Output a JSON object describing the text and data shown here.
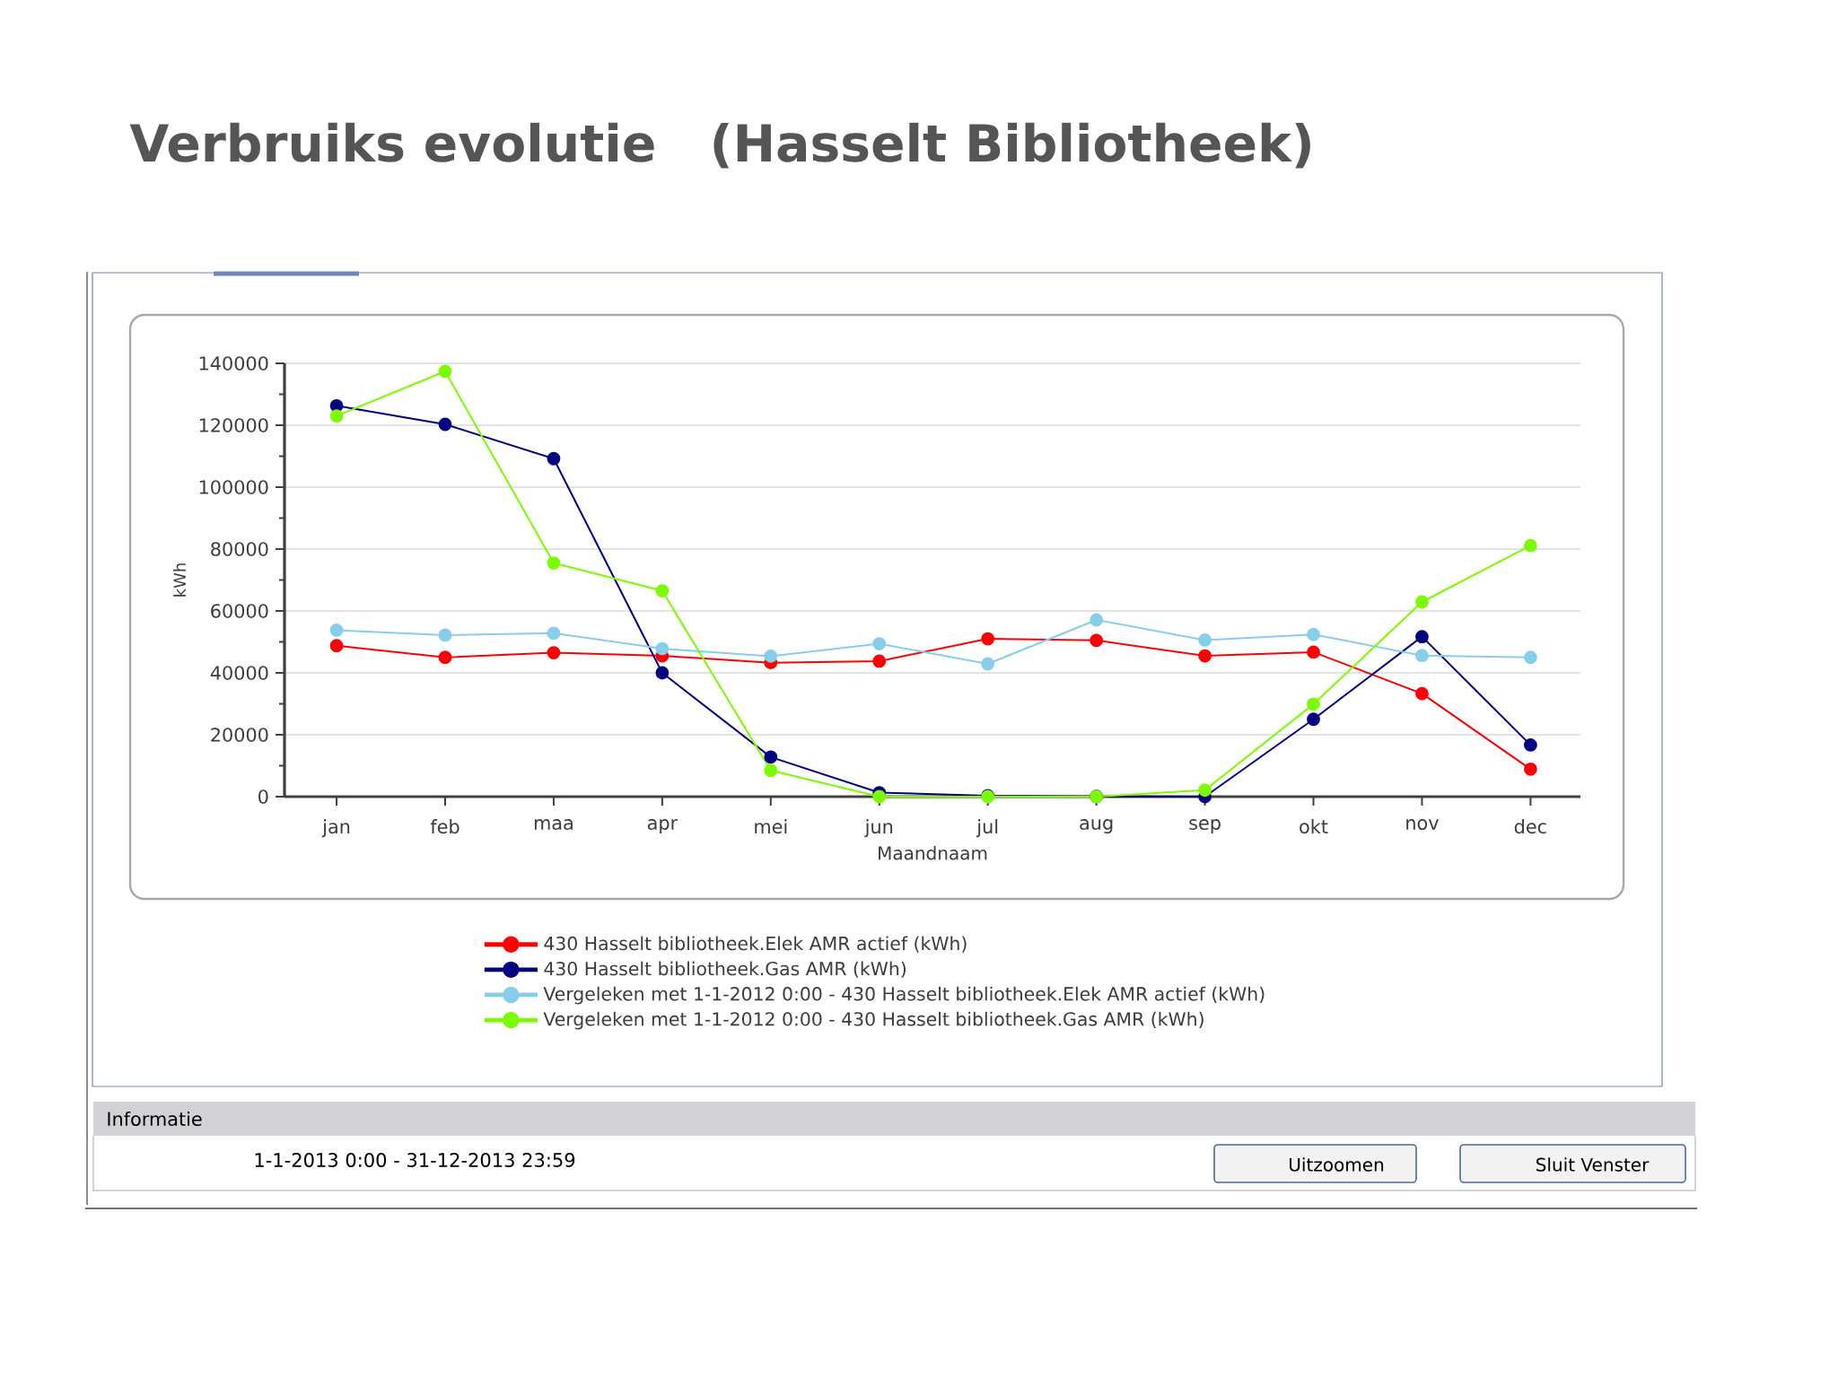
{
  "chart_data": {
    "type": "line",
    "title": "Verbruiks evolutie   (Hasselt Bibliotheek)",
    "xlabel": "Maandnaam",
    "ylabel": "kWh",
    "categories": [
      "jan",
      "feb",
      "maa",
      "apr",
      "mei",
      "jun",
      "jul",
      "aug",
      "sep",
      "okt",
      "nov",
      "dec"
    ],
    "series": [
      {
        "name": "430 Hasselt bibliotheek.Elek AMR actief (kWh)",
        "color": "#ff0000",
        "values": [
          48800,
          45000,
          46500,
          45500,
          43300,
          43800,
          51000,
          50500,
          45500,
          46700,
          33300,
          8900
        ]
      },
      {
        "name": "430 Hasselt bibliotheek.Gas AMR (kWh)",
        "color": "#000080",
        "values": [
          126300,
          120300,
          109200,
          40000,
          12800,
          1300,
          300,
          100,
          0,
          25000,
          51700,
          16700
        ]
      },
      {
        "name": "Vergeleken met 1-1-2012 0:00 - 430 Hasselt bibliotheek.Elek AMR actief (kWh)",
        "color": "#87ceeb",
        "values": [
          53800,
          52200,
          52800,
          47800,
          45400,
          49400,
          42900,
          57100,
          50600,
          52400,
          45600,
          45000
        ]
      },
      {
        "name": "Vergeleken met 1-1-2012 0:00 - 430 Hasselt bibliotheek.Gas AMR (kWh)",
        "color": "#7cfc00",
        "values": [
          123000,
          137400,
          75500,
          66500,
          8500,
          0,
          0,
          0,
          2100,
          29900,
          62900,
          81100
        ]
      }
    ],
    "ylim": [
      0,
      140000
    ],
    "yticks": [
      0,
      {
        "value": 10000,
        "label": null
      },
      20000,
      {
        "value": 30000,
        "label": null
      },
      40000,
      {
        "value": 50000,
        "label": null
      },
      60000,
      {
        "value": 70000,
        "label": null
      },
      80000,
      {
        "value": 90000,
        "label": null
      },
      100000,
      {
        "value": 110000,
        "label": null
      },
      120000,
      {
        "value": 130000,
        "label": null
      },
      140000
    ],
    "grid": "y",
    "legend": "bottom",
    "marker": "circle",
    "line_style": "solid",
    "annotations": [
      "Informatie",
      "1-1-2013 0:00 - 31-12-2013 23:59",
      "Uitzoomen",
      "Sluit Venster"
    ]
  }
}
